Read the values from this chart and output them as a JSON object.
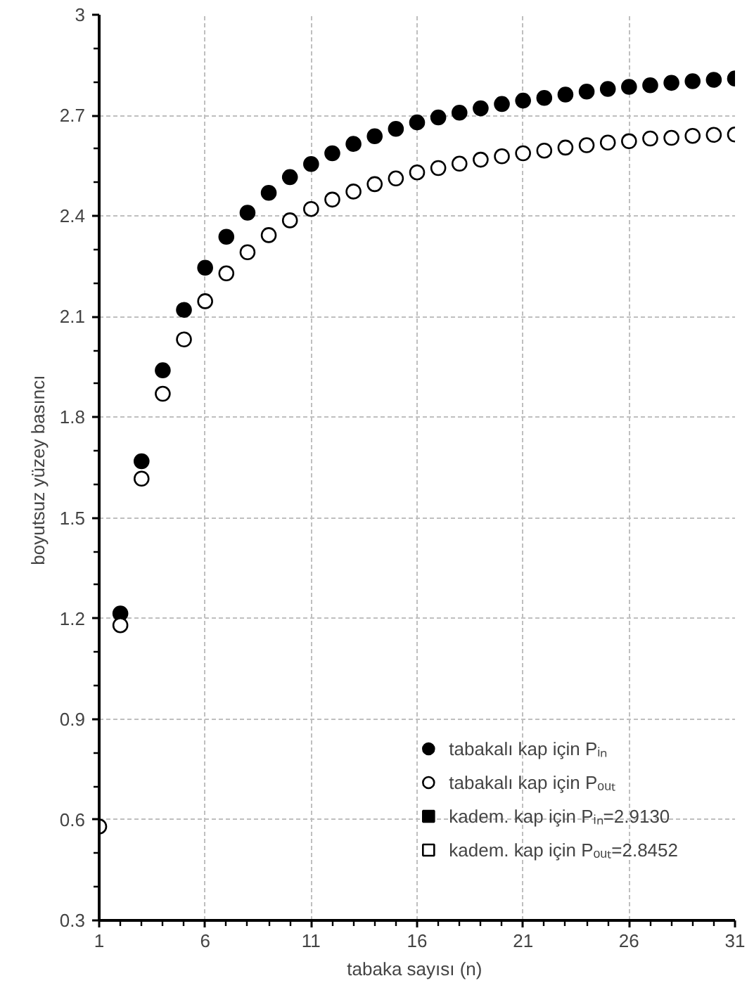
{
  "chart_data": {
    "type": "scatter",
    "xlabel": "tabaka sayısı  (n)",
    "ylabel": "boyutsuz  yüzey basıncı",
    "x": [
      1,
      2,
      3,
      4,
      5,
      6,
      7,
      8,
      9,
      10,
      11,
      12,
      13,
      14,
      15,
      16,
      17,
      18,
      19,
      20,
      21,
      22,
      23,
      24,
      25,
      26,
      27,
      28,
      29,
      30,
      31
    ],
    "xlim": [
      1,
      31
    ],
    "xticks": [
      1,
      6,
      11,
      16,
      21,
      26,
      31
    ],
    "ylim": [
      0.3,
      3
    ],
    "yticks": [
      0.3,
      0.6,
      0.9,
      1.2,
      1.5,
      1.8,
      2.1,
      2.4,
      2.7,
      3
    ],
    "grid": true,
    "legend": "bottom right",
    "series": [
      {
        "name": "tabakalı kap için Pᵢₙ",
        "color": "#000000",
        "marker": "circle",
        "values": [
          null,
          1.215,
          1.669,
          1.94,
          2.12,
          2.246,
          2.338,
          2.41,
          2.469,
          2.516,
          2.555,
          2.587,
          2.615,
          2.638,
          2.66,
          2.679,
          2.694,
          2.708,
          2.721,
          2.734,
          2.744,
          2.752,
          2.762,
          2.771,
          2.779,
          2.785,
          2.79,
          2.797,
          2.802,
          2.806,
          2.81
        ]
      },
      {
        "name": "tabakalı kap için Pₒᵤₜ",
        "color": "#ffffff",
        "marker": "circle",
        "values": [
          0.58,
          1.18,
          1.617,
          1.87,
          2.032,
          2.146,
          2.229,
          2.292,
          2.343,
          2.387,
          2.421,
          2.449,
          2.473,
          2.495,
          2.512,
          2.53,
          2.543,
          2.556,
          2.568,
          2.578,
          2.587,
          2.595,
          2.604,
          2.611,
          2.619,
          2.623,
          2.631,
          2.633,
          2.639,
          2.642,
          2.643
        ]
      },
      {
        "name": "kadem. kap için Pᵢₙ=2.9130",
        "color": "#000000",
        "marker": "square",
        "values": [
          null,
          null,
          null,
          null,
          null,
          null,
          null,
          null,
          null,
          null,
          null,
          null,
          null,
          null,
          null,
          null,
          null,
          null,
          null,
          null,
          null,
          null,
          null,
          null,
          null,
          null,
          null,
          null,
          null,
          null,
          null
        ]
      },
      {
        "name": "kadem. kap için Pₒᵤₜ=2.8452",
        "color": "#ffffff",
        "marker": "square",
        "values": [
          null,
          null,
          null,
          null,
          null,
          null,
          null,
          null,
          null,
          null,
          null,
          null,
          null,
          null,
          null,
          null,
          null,
          null,
          null,
          null,
          null,
          null,
          null,
          null,
          null,
          null,
          null,
          null,
          null,
          null,
          null
        ]
      }
    ]
  }
}
